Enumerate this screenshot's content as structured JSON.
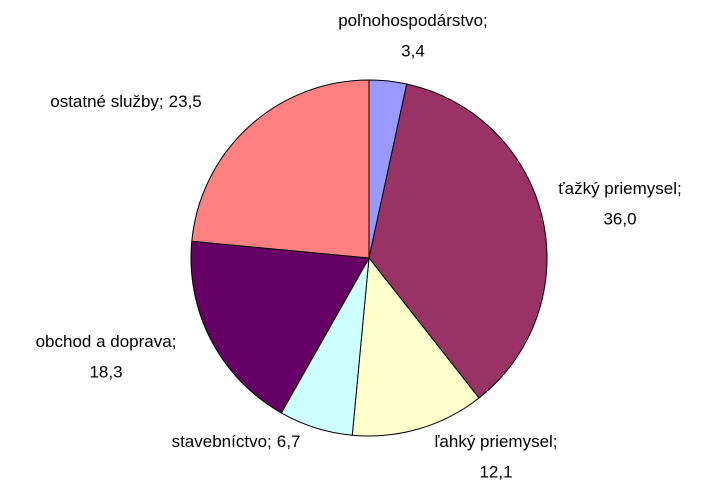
{
  "chart_data": {
    "type": "pie",
    "categories": [
      "poľnohospodárstvo",
      "ťažký priemysel",
      "ľahký priemysel",
      "stavebníctvo",
      "obchod a doprava",
      "ostatné služby"
    ],
    "values": [
      3.4,
      36.0,
      12.1,
      6.7,
      18.3,
      23.5
    ],
    "value_labels": [
      "3,4",
      "36,0",
      "12,1",
      "6,7",
      "18,3",
      "23,5"
    ],
    "label_separator": ";",
    "colors": [
      "#9999ff",
      "#993366",
      "#ffffcc",
      "#ccffff",
      "#660066",
      "#ff8080"
    ]
  }
}
